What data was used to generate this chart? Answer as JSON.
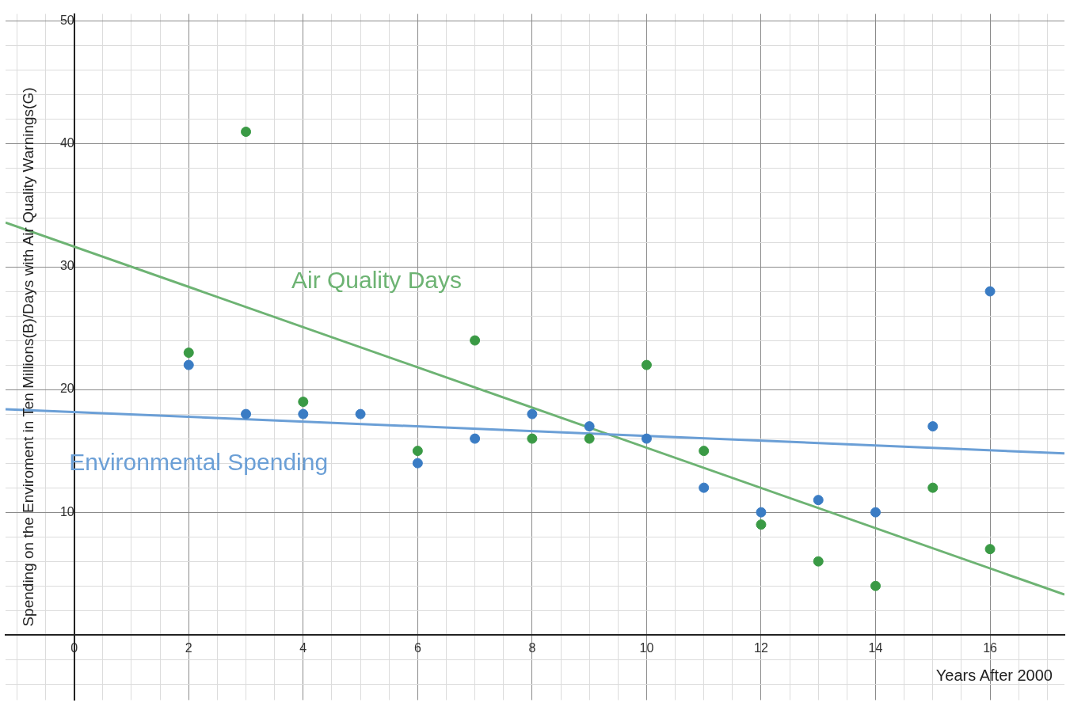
{
  "chart_data": {
    "type": "scatter",
    "xlabel": "Years After 2000",
    "ylabel": "Spending on the Enviroment in Ten Millions(B)/Days with Air Quality Warnings(G)",
    "xlim": [
      -1.2,
      17.3
    ],
    "ylim": [
      -5.3,
      50.6
    ],
    "xticks": [
      {
        "value": -1,
        "label": null
      },
      {
        "value": -0.5,
        "label": null
      },
      0,
      {
        "value": 0.5,
        "label": null
      },
      {
        "value": 1,
        "label": null
      },
      {
        "value": 1.5,
        "label": null
      },
      2,
      {
        "value": 2.5,
        "label": null
      },
      {
        "value": 3,
        "label": null
      },
      {
        "value": 3.5,
        "label": null
      },
      4,
      {
        "value": 4.5,
        "label": null
      },
      {
        "value": 5,
        "label": null
      },
      {
        "value": 5.5,
        "label": null
      },
      6,
      {
        "value": 6.5,
        "label": null
      },
      {
        "value": 7,
        "label": null
      },
      {
        "value": 7.5,
        "label": null
      },
      8,
      {
        "value": 8.5,
        "label": null
      },
      {
        "value": 9,
        "label": null
      },
      {
        "value": 9.5,
        "label": null
      },
      10,
      {
        "value": 10.5,
        "label": null
      },
      {
        "value": 11,
        "label": null
      },
      {
        "value": 11.5,
        "label": null
      },
      12,
      {
        "value": 12.5,
        "label": null
      },
      {
        "value": 13,
        "label": null
      },
      {
        "value": 13.5,
        "label": null
      },
      14,
      {
        "value": 14.5,
        "label": null
      },
      {
        "value": 15,
        "label": null
      },
      {
        "value": 15.5,
        "label": null
      },
      16,
      {
        "value": 16.5,
        "label": null
      },
      {
        "value": 17,
        "label": null
      }
    ],
    "yticks": [
      {
        "value": -4,
        "label": null
      },
      {
        "value": -2,
        "label": null
      },
      {
        "value": 0,
        "label": null
      },
      {
        "value": 2,
        "label": null
      },
      {
        "value": 4,
        "label": null
      },
      {
        "value": 6,
        "label": null
      },
      {
        "value": 8,
        "label": null
      },
      10,
      {
        "value": 12,
        "label": null
      },
      {
        "value": 14,
        "label": null
      },
      {
        "value": 16,
        "label": null
      },
      {
        "value": 18,
        "label": null
      },
      20,
      {
        "value": 22,
        "label": null
      },
      {
        "value": 24,
        "label": null
      },
      {
        "value": 26,
        "label": null
      },
      {
        "value": 28,
        "label": null
      },
      30,
      {
        "value": 32,
        "label": null
      },
      {
        "value": 34,
        "label": null
      },
      {
        "value": 36,
        "label": null
      },
      {
        "value": 38,
        "label": null
      },
      40,
      {
        "value": 42,
        "label": null
      },
      {
        "value": 44,
        "label": null
      },
      {
        "value": 46,
        "label": null
      },
      {
        "value": 48,
        "label": null
      },
      50
    ],
    "grid": true,
    "legend": false,
    "marker": "circle",
    "series": [
      {
        "color": "#3a7cc4",
        "x": [
          2,
          3,
          4,
          5,
          6,
          7,
          8,
          9,
          10,
          11,
          12,
          13,
          14,
          15,
          16
        ],
        "values": [
          22,
          18,
          18,
          18,
          14,
          16,
          18,
          17,
          16,
          12,
          10,
          11,
          10,
          17,
          28
        ]
      },
      {
        "color": "#3a9a45",
        "x": [
          2,
          3,
          4,
          6,
          7,
          8,
          9,
          10,
          11,
          12,
          13,
          14,
          15,
          16
        ],
        "values": [
          23,
          41,
          19,
          15,
          24,
          16,
          16,
          22,
          15,
          9,
          6,
          4,
          12,
          7
        ]
      },
      {
        "name": "Environmental Spending",
        "type": "line",
        "marker": "none",
        "color": "#6b9fd6",
        "x": [
          -1.2,
          17.3
        ],
        "values": [
          18.4,
          14.8
        ]
      },
      {
        "name": "Air Quality Days",
        "type": "line",
        "marker": "none",
        "color": "#6db373",
        "x": [
          -1.2,
          17.3
        ],
        "values": [
          33.6,
          3.3
        ]
      }
    ]
  }
}
